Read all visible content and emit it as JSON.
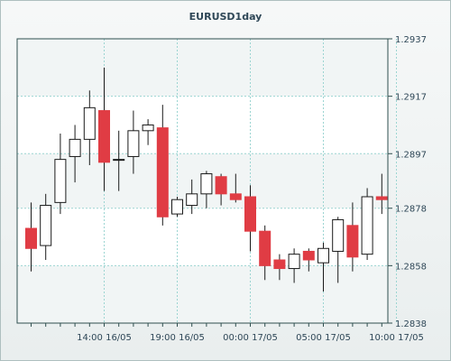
{
  "chart_data": {
    "type": "candlestick",
    "title": "EURUSD1day",
    "xlabel": "",
    "ylabel": "",
    "ylim": [
      1.2838,
      1.2937
    ],
    "y_ticks": [
      "1.2937",
      "1.2917",
      "1.2897",
      "1.2878",
      "1.2858",
      "1.2838"
    ],
    "x_ticks": [
      {
        "label": "14:00 16/05",
        "bar": 5
      },
      {
        "label": "19:00 16/05",
        "bar": 10
      },
      {
        "label": "00:00 17/05",
        "bar": 15
      },
      {
        "label": "05:00 17/05",
        "bar": 20
      },
      {
        "label": "10:00 17/05",
        "bar": 25
      }
    ],
    "grid": true,
    "colors": {
      "up_fill": "#ffffff",
      "down_fill": "#e03c44",
      "candle_outline": "#1a1a1a",
      "wick": "#1a1a1a",
      "grid": "#9cd5d2",
      "axis": "#2f4f4f",
      "title": "#2e4757",
      "plot_band_light": "#ffffff",
      "plot_band_dark": "#f1f5f5"
    },
    "candles": [
      {
        "open": 1.2871,
        "high": 1.288,
        "low": 1.2856,
        "close": 1.2864
      },
      {
        "open": 1.2865,
        "high": 1.2883,
        "low": 1.286,
        "close": 1.2879
      },
      {
        "open": 1.288,
        "high": 1.2904,
        "low": 1.2876,
        "close": 1.2895
      },
      {
        "open": 1.2896,
        "high": 1.2907,
        "low": 1.2887,
        "close": 1.2902
      },
      {
        "open": 1.2902,
        "high": 1.2919,
        "low": 1.2893,
        "close": 1.2913
      },
      {
        "open": 1.2912,
        "high": 1.2927,
        "low": 1.2884,
        "close": 1.2894
      },
      {
        "open": 1.2895,
        "high": 1.2905,
        "low": 1.2884,
        "close": 1.2895
      },
      {
        "open": 1.2896,
        "high": 1.2912,
        "low": 1.289,
        "close": 1.2905
      },
      {
        "open": 1.2905,
        "high": 1.2909,
        "low": 1.29,
        "close": 1.2907
      },
      {
        "open": 1.2906,
        "high": 1.2914,
        "low": 1.2872,
        "close": 1.2875
      },
      {
        "open": 1.2876,
        "high": 1.2882,
        "low": 1.2875,
        "close": 1.2881
      },
      {
        "open": 1.2879,
        "high": 1.2888,
        "low": 1.2876,
        "close": 1.2883
      },
      {
        "open": 1.2883,
        "high": 1.2891,
        "low": 1.2878,
        "close": 1.289
      },
      {
        "open": 1.2889,
        "high": 1.289,
        "low": 1.2879,
        "close": 1.2883
      },
      {
        "open": 1.2883,
        "high": 1.289,
        "low": 1.288,
        "close": 1.2881
      },
      {
        "open": 1.2882,
        "high": 1.2886,
        "low": 1.2863,
        "close": 1.287
      },
      {
        "open": 1.287,
        "high": 1.2872,
        "low": 1.2853,
        "close": 1.2858
      },
      {
        "open": 1.286,
        "high": 1.2862,
        "low": 1.2853,
        "close": 1.2857
      },
      {
        "open": 1.2857,
        "high": 1.2864,
        "low": 1.2852,
        "close": 1.2862
      },
      {
        "open": 1.2863,
        "high": 1.2864,
        "low": 1.2856,
        "close": 1.286
      },
      {
        "open": 1.2859,
        "high": 1.2866,
        "low": 1.2849,
        "close": 1.2864
      },
      {
        "open": 1.2863,
        "high": 1.2875,
        "low": 1.2852,
        "close": 1.2874
      },
      {
        "open": 1.2872,
        "high": 1.288,
        "low": 1.2856,
        "close": 1.2861
      },
      {
        "open": 1.2862,
        "high": 1.2885,
        "low": 1.286,
        "close": 1.2882
      },
      {
        "open": 1.2882,
        "high": 1.289,
        "low": 1.2876,
        "close": 1.2881
      }
    ]
  }
}
